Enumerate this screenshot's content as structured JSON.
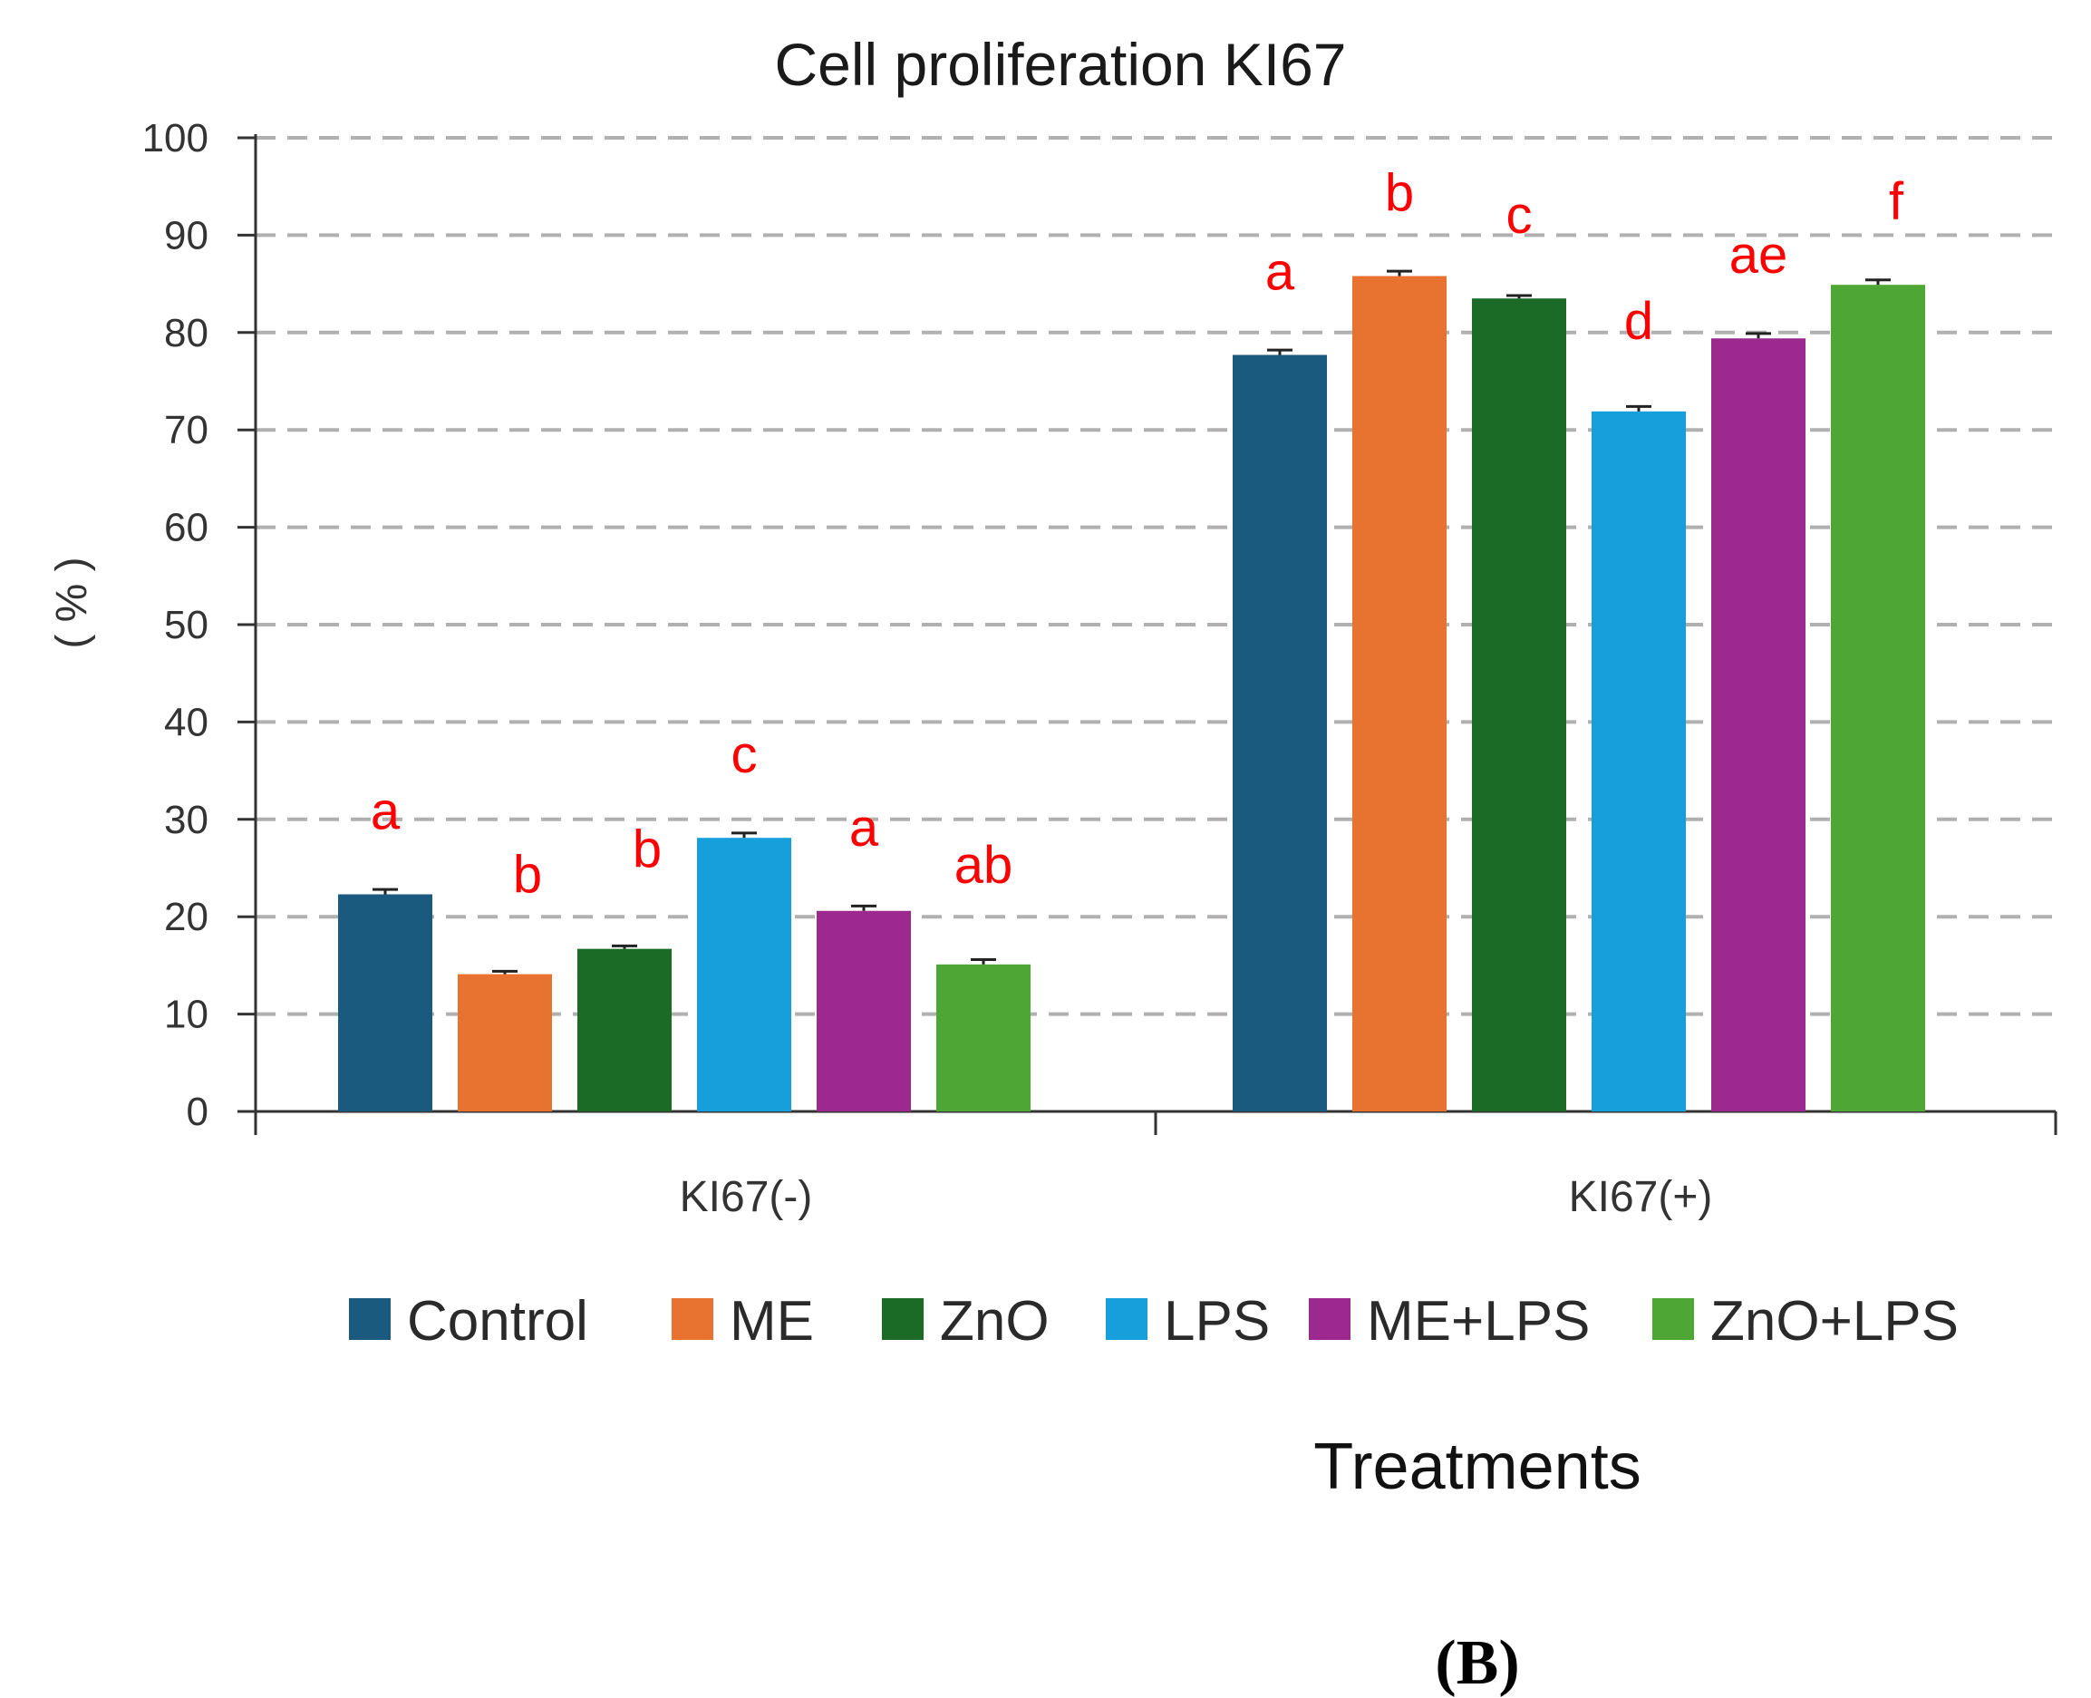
{
  "chart_data": {
    "type": "bar",
    "title": "Cell proliferation  KI67",
    "ylabel": "( % )",
    "xlabel": "Treatments",
    "panel_label": "(B)",
    "ylim": [
      0,
      100
    ],
    "yticks": [
      0,
      10,
      20,
      30,
      40,
      50,
      60,
      70,
      80,
      90,
      100
    ],
    "grid": true,
    "legend_position": "bottom",
    "categories": [
      "KI67(-)",
      "KI67(+)"
    ],
    "series": [
      {
        "name": "Control",
        "color": "#1a5a7e",
        "values": [
          22.3,
          77.7
        ],
        "errors": [
          0.5,
          0.5
        ],
        "letters": [
          "a",
          "a"
        ]
      },
      {
        "name": "ME",
        "color": "#e87330",
        "values": [
          14.1,
          85.8
        ],
        "errors": [
          0.3,
          0.5
        ],
        "letters": [
          "b",
          "b"
        ]
      },
      {
        "name": "ZnO",
        "color": "#1b6b27",
        "values": [
          16.7,
          83.5
        ],
        "errors": [
          0.3,
          0.3
        ],
        "letters": [
          "b",
          "c"
        ]
      },
      {
        "name": "LPS",
        "color": "#169fda",
        "values": [
          28.1,
          71.9
        ],
        "errors": [
          0.5,
          0.5
        ],
        "letters": [
          "c",
          "d"
        ]
      },
      {
        "name": "ME+LPS",
        "color": "#9c2a8e",
        "values": [
          20.6,
          79.4
        ],
        "errors": [
          0.5,
          0.5
        ],
        "letters": [
          "a",
          "ae"
        ]
      },
      {
        "name": "ZnO+LPS",
        "color": "#4ea734",
        "values": [
          15.1,
          84.9
        ],
        "errors": [
          0.5,
          0.5
        ],
        "letters": [
          "ab",
          "f"
        ]
      }
    ]
  }
}
